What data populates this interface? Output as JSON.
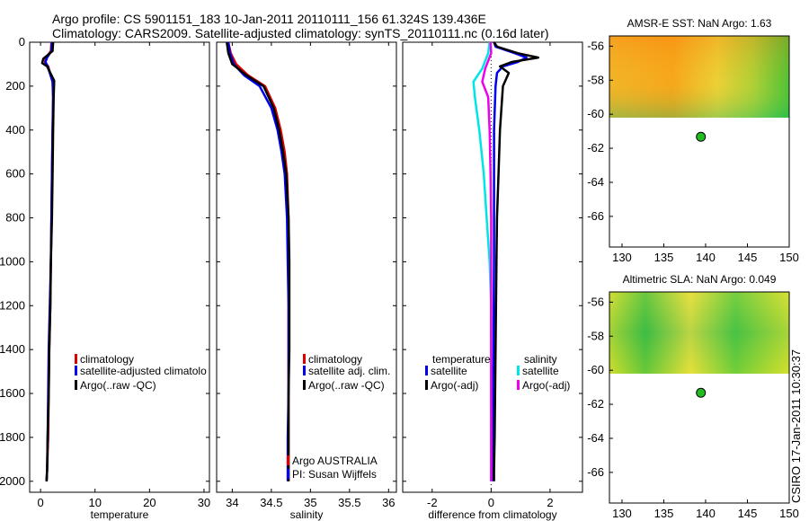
{
  "header": {
    "line1": "Argo profile: CS 5901151_183 10-Jan-2011 20110111_156 61.324S 139.436E",
    "line2": "Climatology: CARS2009. Satellite-adjusted climatology: synTS_20110111.nc (0.16d later)"
  },
  "footer": "CSIRO 17-Jan-2011 10:30:37",
  "colors": {
    "climatology": "#dd0000",
    "satellite": "#0000ee",
    "argo": "#000000",
    "sal_satellite": "#00e5e5",
    "sal_argo": "#ee00ee",
    "marker": "#22bb22"
  },
  "chart_data": [
    {
      "type": "line",
      "id": "temperature",
      "xlabel": "temperature",
      "ylabel": "",
      "xlim": [
        -2,
        31
      ],
      "ylim": [
        2050,
        0
      ],
      "xticks": [
        0,
        10,
        20,
        30
      ],
      "yticks": [
        0,
        200,
        400,
        600,
        800,
        1000,
        1200,
        1400,
        1600,
        1800,
        2000
      ],
      "legend": [
        "climatology",
        "satellite-adjusted climatolo",
        "Argo(..raw -QC)"
      ],
      "series": [
        {
          "name": "climatology",
          "color": "#dd0000",
          "x": [
            2.0,
            1.9,
            1.0,
            0.8,
            1.4,
            2.2,
            2.3,
            2.2,
            2.1,
            2.0,
            1.9,
            1.8,
            1.6,
            1.5,
            1.4,
            1.2,
            1.1
          ],
          "y": [
            0,
            40,
            70,
            90,
            110,
            180,
            250,
            400,
            600,
            800,
            1000,
            1200,
            1400,
            1600,
            1800,
            1950,
            2000
          ]
        },
        {
          "name": "satellite-adjusted climatology",
          "color": "#0000ee",
          "x": [
            2.1,
            2.0,
            1.2,
            0.9,
            1.3,
            2.2,
            2.3,
            2.2,
            2.1,
            2.0,
            1.9,
            1.7,
            1.5,
            1.4,
            1.3,
            1.2,
            1.1
          ],
          "y": [
            0,
            40,
            70,
            90,
            110,
            180,
            250,
            400,
            600,
            800,
            1000,
            1200,
            1400,
            1600,
            1800,
            1950,
            2000
          ]
        },
        {
          "name": "Argo(..raw -QC)",
          "color": "#000000",
          "x": [
            2.3,
            2.2,
            0.5,
            0.3,
            1.2,
            2.5,
            2.4,
            2.3,
            2.2,
            2.1,
            1.9,
            1.8,
            1.6,
            1.5,
            1.3,
            1.2,
            1.1
          ],
          "y": [
            0,
            40,
            75,
            95,
            110,
            175,
            250,
            400,
            600,
            800,
            1000,
            1200,
            1400,
            1600,
            1800,
            1950,
            2000
          ]
        }
      ]
    },
    {
      "type": "line",
      "id": "salinity",
      "xlabel": "salinity",
      "ylabel": "",
      "xlim": [
        33.8,
        36.1
      ],
      "ylim": [
        2050,
        0
      ],
      "xticks": [
        34,
        34.5,
        35,
        35.5,
        36
      ],
      "xtick_labels": [
        "34",
        "34.5",
        "35",
        "35.5",
        "36"
      ],
      "legend": [
        "climatology",
        "satellite adj. clim.",
        "Argo(..raw -QC)"
      ],
      "annotations": [
        "Argo AUSTRALIA",
        "PI: Susan Wijffels"
      ],
      "series": [
        {
          "name": "climatology",
          "color": "#dd0000",
          "x": [
            33.95,
            33.98,
            34.05,
            34.2,
            34.42,
            34.55,
            34.62,
            34.67,
            34.7,
            34.72,
            34.72,
            34.72,
            34.72,
            34.72,
            34.72,
            34.72,
            34.72
          ],
          "y": [
            0,
            50,
            100,
            150,
            200,
            300,
            400,
            500,
            600,
            800,
            1000,
            1200,
            1400,
            1600,
            1800,
            1900,
            2000
          ]
        },
        {
          "name": "satellite adj. clim.",
          "color": "#0000ee",
          "x": [
            33.95,
            33.97,
            34.02,
            34.15,
            34.35,
            34.5,
            34.58,
            34.63,
            34.67,
            34.7,
            34.71,
            34.72,
            34.72,
            34.72,
            34.71,
            34.71,
            34.71
          ],
          "y": [
            0,
            50,
            100,
            150,
            200,
            300,
            400,
            500,
            600,
            800,
            1000,
            1200,
            1400,
            1600,
            1800,
            1900,
            2000
          ]
        },
        {
          "name": "Argo(..raw -QC)",
          "color": "#000000",
          "x": [
            33.93,
            33.95,
            34.0,
            34.18,
            34.4,
            34.53,
            34.6,
            34.65,
            34.69,
            34.72,
            34.73,
            34.73,
            34.73,
            34.72,
            34.72,
            34.72,
            34.72
          ],
          "y": [
            0,
            50,
            100,
            150,
            200,
            300,
            400,
            500,
            600,
            800,
            1000,
            1200,
            1400,
            1600,
            1800,
            1900,
            2000
          ]
        }
      ]
    },
    {
      "type": "line",
      "id": "difference",
      "xlabel": "difference from climatology",
      "ylabel": "",
      "xlim": [
        -3,
        3.1
      ],
      "ylim": [
        2050,
        0
      ],
      "xticks": [
        -2,
        0,
        2
      ],
      "legend_titles": [
        "temperature",
        "salinity"
      ],
      "legend": [
        "satellite",
        "Argo(-adj)",
        "satellite",
        "Argo(-adj)"
      ],
      "series": [
        {
          "name": "temperature satellite",
          "color": "#0000ee",
          "x": [
            0.1,
            0.15,
            0.8,
            1.2,
            0.9,
            0.4,
            0.2,
            0.15,
            0.1,
            0.1,
            0.1,
            0.1,
            0.08,
            0.05,
            0.05,
            0.05
          ],
          "y": [
            0,
            20,
            50,
            70,
            90,
            110,
            140,
            200,
            400,
            600,
            800,
            1000,
            1400,
            1800,
            1950,
            2000
          ]
        },
        {
          "name": "temperature Argo(-adj)",
          "color": "#000000",
          "x": [
            0.1,
            0.2,
            0.9,
            1.6,
            0.7,
            0.3,
            0.6,
            0.4,
            0.3,
            0.25,
            0.2,
            0.18,
            0.15,
            0.12,
            0.1,
            0.1
          ],
          "y": [
            0,
            20,
            50,
            70,
            90,
            110,
            140,
            200,
            400,
            600,
            800,
            1000,
            1400,
            1800,
            1950,
            2000
          ]
        },
        {
          "name": "salinity satellite",
          "color": "#00e5e5",
          "x": [
            -0.05,
            -0.1,
            -0.3,
            -0.6,
            -0.55,
            -0.4,
            -0.25,
            -0.15,
            -0.05,
            0.0,
            0.0,
            0.0,
            0.0
          ],
          "y": [
            0,
            50,
            120,
            180,
            250,
            400,
            600,
            800,
            1000,
            1200,
            1400,
            1800,
            2000
          ]
        },
        {
          "name": "salinity Argo(-adj)",
          "color": "#ee00ee",
          "x": [
            -0.02,
            0.0,
            -0.2,
            -0.3,
            -0.1,
            -0.05,
            -0.02,
            0.0,
            0.0,
            0.0,
            0.0,
            0.0
          ],
          "y": [
            0,
            50,
            120,
            180,
            250,
            400,
            600,
            800,
            1000,
            1400,
            1800,
            2000
          ]
        }
      ]
    },
    {
      "type": "heatmap",
      "id": "sst-map",
      "title": "AMSR-E SST: NaN Argo: 1.63",
      "xlim": [
        128.5,
        150
      ],
      "ylim": [
        -67.8,
        -55.4
      ],
      "xticks": [
        130,
        135,
        140,
        145,
        150
      ],
      "yticks": [
        -56,
        -58,
        -60,
        -62,
        -64,
        -66
      ],
      "data_extent_lat": [
        -60.2,
        -55.4
      ],
      "marker": {
        "lon": 139.436,
        "lat": -61.324
      }
    },
    {
      "type": "heatmap",
      "id": "sla-map",
      "title": "Altimetric SLA: NaN Argo: 0.049",
      "xlim": [
        128.5,
        150
      ],
      "ylim": [
        -67.8,
        -55.4
      ],
      "xticks": [
        130,
        135,
        140,
        145,
        150
      ],
      "yticks": [
        -56,
        -58,
        -60,
        -62,
        -64,
        -66
      ],
      "data_extent_lat": [
        -60.2,
        -55.4
      ],
      "marker": {
        "lon": 139.436,
        "lat": -61.324
      }
    }
  ]
}
